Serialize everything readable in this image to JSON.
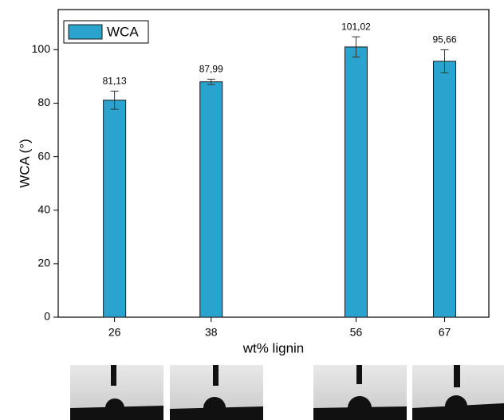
{
  "chart_data": {
    "type": "bar",
    "x_label": "wt% lignin",
    "y_label": "WCA (°)",
    "x": [
      26,
      38,
      56,
      67
    ],
    "series": [
      {
        "name": "WCA",
        "color": "#2aa3cf",
        "values": [
          81.13,
          87.99,
          101.02,
          95.66
        ],
        "value_labels": [
          "81,13",
          "87,99",
          "101,02",
          "95,66"
        ],
        "errors": [
          3.4,
          1,
          3.8,
          4.3
        ]
      }
    ],
    "xlim": [
      19,
      72.5
    ],
    "ylim": [
      0,
      115
    ],
    "xticks": [
      26,
      38,
      56,
      67
    ],
    "yticks": [
      0,
      20,
      40,
      60,
      80,
      100
    ],
    "legend": "top-left"
  }
}
